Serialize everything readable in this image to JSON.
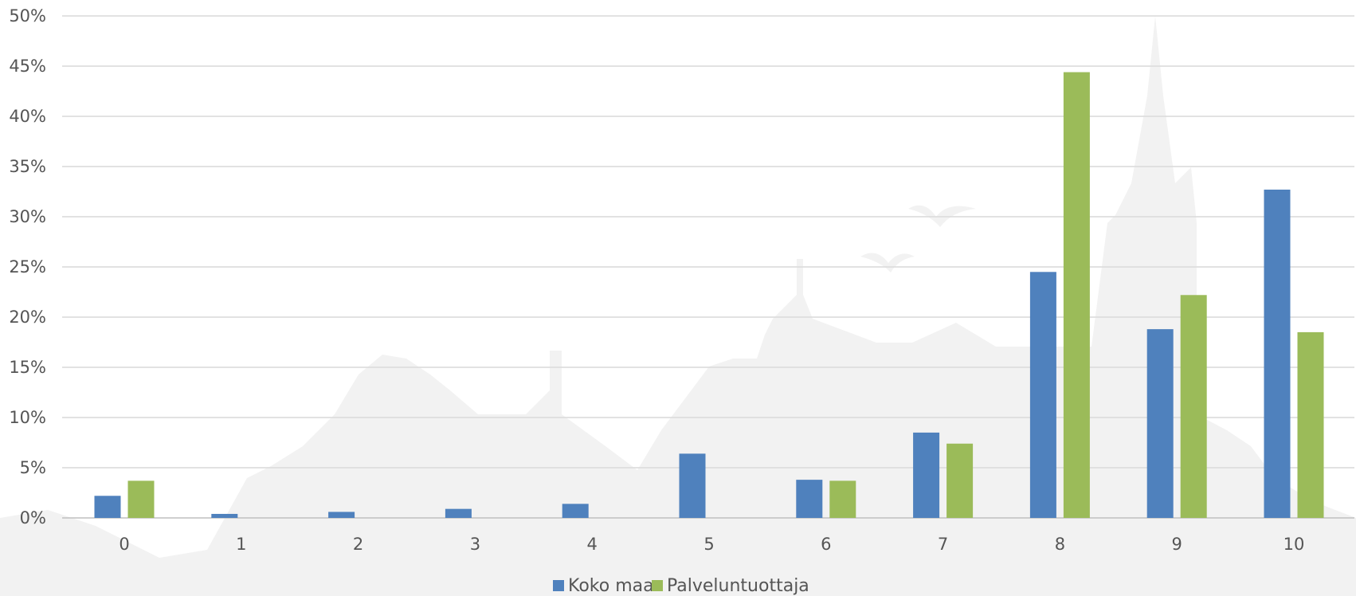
{
  "chart_data": {
    "type": "bar",
    "categories": [
      "0",
      "1",
      "2",
      "3",
      "4",
      "5",
      "6",
      "7",
      "8",
      "9",
      "10"
    ],
    "series": [
      {
        "name": "Koko maa",
        "color": "#4f81bd",
        "values": [
          2.2,
          0.4,
          0.6,
          0.9,
          1.4,
          6.4,
          3.8,
          8.5,
          24.5,
          18.8,
          32.7
        ]
      },
      {
        "name": "Palveluntuottaja",
        "color": "#9bbb59",
        "values": [
          3.7,
          0,
          0,
          0,
          0,
          0,
          3.7,
          7.4,
          44.4,
          22.2,
          18.5
        ]
      }
    ],
    "ylim": [
      0,
      50
    ],
    "yticks": [
      "0%",
      "5%",
      "10%",
      "15%",
      "20%",
      "25%",
      "30%",
      "35%",
      "40%",
      "45%",
      "50%"
    ],
    "ytick_values": [
      0,
      5,
      10,
      15,
      20,
      25,
      30,
      35,
      40,
      45,
      50
    ],
    "grid": true,
    "legend": "bottom",
    "background": "faint city silhouette watermark"
  }
}
